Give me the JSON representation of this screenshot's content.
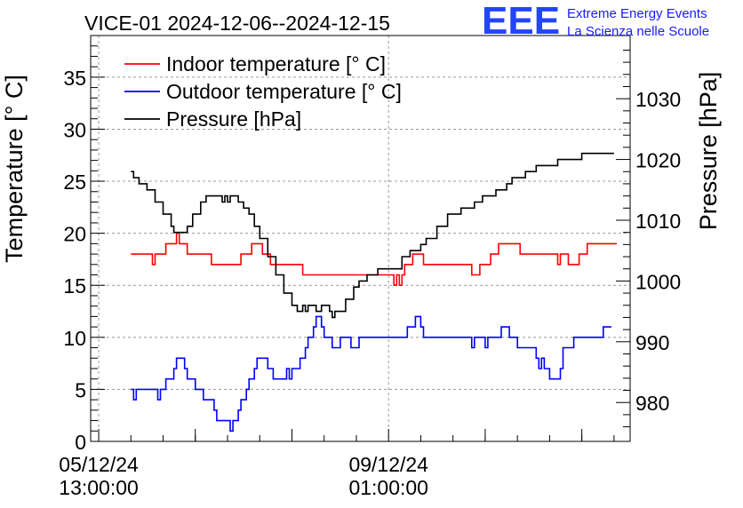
{
  "chart_data": {
    "type": "line",
    "title": "VICE-01 2024-12-06--2024-12-15",
    "ylabel": "Temperature [° C]",
    "y2label": "Pressure [hPa]",
    "ylim": [
      0,
      39
    ],
    "y2lim": [
      973.6,
      1040.4
    ],
    "xlim_hours": [
      -3,
      198
    ],
    "yticks": [
      0,
      5,
      10,
      15,
      20,
      25,
      30,
      35
    ],
    "y2ticks": [
      980,
      990,
      1000,
      1010,
      1020,
      1030
    ],
    "xticks": [
      {
        "hour": 0,
        "line1": "05/12/24",
        "line2": "13:00:00"
      },
      {
        "hour": 108,
        "line1": "09/12/24",
        "line2": "01:00:00"
      }
    ],
    "grid": true,
    "legend_position": "top-left",
    "logo": {
      "mark": "EEE",
      "line1": "Extreme Energy Events",
      "line2": "La Scienza nelle Scuole"
    },
    "series": [
      {
        "name": "Indoor temperature [° C]",
        "axis": "left",
        "color": "#ff0000",
        "points": [
          [
            12,
            18
          ],
          [
            19,
            18
          ],
          [
            20,
            17
          ],
          [
            21,
            18
          ],
          [
            24,
            18
          ],
          [
            25,
            19
          ],
          [
            28,
            19
          ],
          [
            29,
            20
          ],
          [
            30,
            19
          ],
          [
            32,
            19
          ],
          [
            33,
            18
          ],
          [
            41,
            18
          ],
          [
            42,
            17
          ],
          [
            52,
            17
          ],
          [
            53,
            18
          ],
          [
            56,
            18
          ],
          [
            57,
            19
          ],
          [
            60,
            19
          ],
          [
            61,
            18
          ],
          [
            63,
            18
          ],
          [
            64,
            17
          ],
          [
            75,
            17
          ],
          [
            76,
            16
          ],
          [
            90,
            16
          ],
          [
            91,
            16
          ],
          [
            102,
            16
          ],
          [
            103,
            16
          ],
          [
            109,
            16
          ],
          [
            110,
            15
          ],
          [
            111,
            16
          ],
          [
            112,
            15
          ],
          [
            113,
            16
          ],
          [
            114,
            17
          ],
          [
            116,
            17
          ],
          [
            117,
            18
          ],
          [
            120,
            18
          ],
          [
            121,
            17
          ],
          [
            138,
            17
          ],
          [
            139,
            16
          ],
          [
            141,
            16
          ],
          [
            142,
            17
          ],
          [
            145,
            17
          ],
          [
            146,
            18
          ],
          [
            148,
            18
          ],
          [
            149,
            19
          ],
          [
            156,
            19
          ],
          [
            157,
            18
          ],
          [
            170,
            18
          ],
          [
            171,
            17
          ],
          [
            172,
            18
          ],
          [
            174,
            18
          ],
          [
            175,
            17
          ],
          [
            178,
            17
          ],
          [
            179,
            18
          ],
          [
            181,
            18
          ],
          [
            182,
            19
          ],
          [
            193,
            19
          ]
        ]
      },
      {
        "name": "Outdoor temperature [° C]",
        "axis": "left",
        "color": "#0000ff",
        "points": [
          [
            12,
            5
          ],
          [
            13,
            4
          ],
          [
            14,
            5
          ],
          [
            21,
            5
          ],
          [
            22,
            4
          ],
          [
            23,
            5
          ],
          [
            24,
            5
          ],
          [
            25,
            6
          ],
          [
            27,
            6
          ],
          [
            28,
            7
          ],
          [
            29,
            8
          ],
          [
            31,
            8
          ],
          [
            32,
            7
          ],
          [
            33,
            6
          ],
          [
            35,
            6
          ],
          [
            36,
            5
          ],
          [
            38,
            5
          ],
          [
            39,
            4
          ],
          [
            41,
            4
          ],
          [
            43,
            3
          ],
          [
            44,
            2
          ],
          [
            48,
            2
          ],
          [
            49,
            1
          ],
          [
            50,
            2
          ],
          [
            52,
            3
          ],
          [
            53,
            4
          ],
          [
            55,
            5
          ],
          [
            56,
            6
          ],
          [
            58,
            7
          ],
          [
            59,
            8
          ],
          [
            62,
            8
          ],
          [
            63,
            7
          ],
          [
            64,
            7
          ],
          [
            65,
            6
          ],
          [
            69,
            6
          ],
          [
            70,
            7
          ],
          [
            71,
            6
          ],
          [
            72,
            7
          ],
          [
            74,
            7
          ],
          [
            75,
            8
          ],
          [
            77,
            9
          ],
          [
            78,
            10
          ],
          [
            80,
            11
          ],
          [
            81,
            12
          ],
          [
            83,
            11
          ],
          [
            84,
            10
          ],
          [
            86,
            10
          ],
          [
            87,
            9
          ],
          [
            89,
            9
          ],
          [
            90,
            10
          ],
          [
            93,
            10
          ],
          [
            94,
            9
          ],
          [
            96,
            9
          ],
          [
            97,
            10
          ],
          [
            110,
            10
          ],
          [
            113,
            10
          ],
          [
            115,
            11
          ],
          [
            117,
            11
          ],
          [
            118,
            12
          ],
          [
            120,
            11
          ],
          [
            121,
            10
          ],
          [
            138,
            10
          ],
          [
            139,
            9
          ],
          [
            140,
            10
          ],
          [
            143,
            10
          ],
          [
            144,
            9
          ],
          [
            145,
            10
          ],
          [
            149,
            10
          ],
          [
            150,
            11
          ],
          [
            152,
            11
          ],
          [
            153,
            10
          ],
          [
            155,
            10
          ],
          [
            156,
            9
          ],
          [
            162,
            9
          ],
          [
            163,
            8
          ],
          [
            164,
            7
          ],
          [
            165,
            8
          ],
          [
            166,
            7
          ],
          [
            167,
            7
          ],
          [
            168,
            6
          ],
          [
            171,
            6
          ],
          [
            172,
            7
          ],
          [
            173,
            9
          ],
          [
            176,
            9
          ],
          [
            177,
            10
          ],
          [
            187,
            10
          ],
          [
            188,
            11
          ],
          [
            191,
            11
          ]
        ]
      },
      {
        "name": "Pressure [hPa]",
        "axis": "right",
        "color": "#000000",
        "points": [
          [
            12,
            1018
          ],
          [
            13,
            1017
          ],
          [
            15,
            1016
          ],
          [
            18,
            1015
          ],
          [
            21,
            1013
          ],
          [
            24,
            1011
          ],
          [
            27,
            1009
          ],
          [
            28,
            1008
          ],
          [
            31,
            1008
          ],
          [
            33,
            1009
          ],
          [
            35,
            1011
          ],
          [
            38,
            1013
          ],
          [
            40,
            1014
          ],
          [
            45,
            1014
          ],
          [
            46,
            1013
          ],
          [
            47,
            1014
          ],
          [
            48,
            1013
          ],
          [
            49,
            1014
          ],
          [
            52,
            1013
          ],
          [
            54,
            1012
          ],
          [
            56,
            1011
          ],
          [
            58,
            1009
          ],
          [
            60,
            1007
          ],
          [
            63,
            1004
          ],
          [
            66,
            1001
          ],
          [
            69,
            998
          ],
          [
            72,
            996
          ],
          [
            74,
            995
          ],
          [
            76,
            996
          ],
          [
            77,
            995
          ],
          [
            78,
            996
          ],
          [
            80,
            996
          ],
          [
            81,
            995
          ],
          [
            83,
            996
          ],
          [
            86,
            995
          ],
          [
            87,
            994
          ],
          [
            88,
            995
          ],
          [
            92,
            997
          ],
          [
            95,
            999
          ],
          [
            97,
            1000
          ],
          [
            100,
            1001
          ],
          [
            103,
            1001
          ],
          [
            104,
            1002
          ],
          [
            110,
            1002
          ],
          [
            113,
            1004
          ],
          [
            116,
            1005
          ],
          [
            120,
            1006
          ],
          [
            122,
            1007
          ],
          [
            126,
            1009
          ],
          [
            130,
            1011
          ],
          [
            133,
            1011
          ],
          [
            135,
            1012
          ],
          [
            137,
            1012
          ],
          [
            140,
            1013
          ],
          [
            143,
            1014
          ],
          [
            146,
            1014
          ],
          [
            148,
            1015
          ],
          [
            152,
            1016
          ],
          [
            154,
            1017
          ],
          [
            157,
            1017
          ],
          [
            159,
            1018
          ],
          [
            161,
            1018
          ],
          [
            163,
            1019
          ],
          [
            168,
            1019
          ],
          [
            171,
            1020
          ],
          [
            179,
            1020
          ],
          [
            180,
            1021
          ],
          [
            192,
            1021
          ]
        ]
      }
    ]
  }
}
